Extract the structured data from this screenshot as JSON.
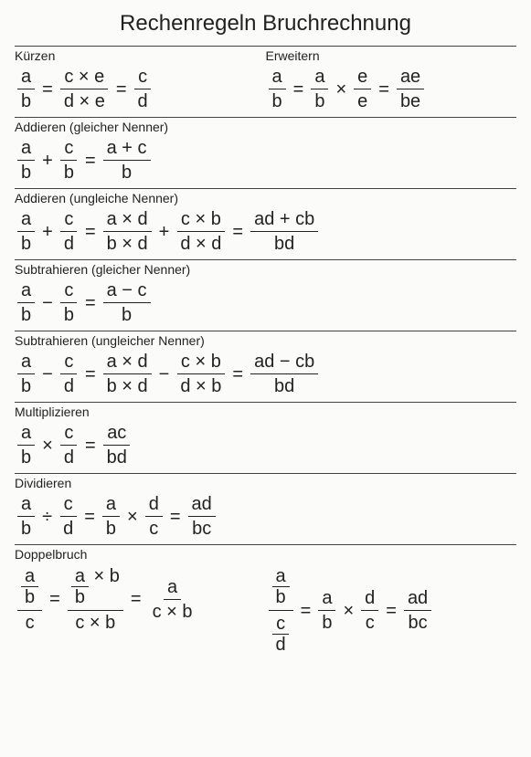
{
  "title": "Rechenregeln Bruchrechnung",
  "sections": {
    "kuerzen": {
      "label": "Kürzen"
    },
    "erweitern": {
      "label": "Erweitern"
    },
    "add_same": {
      "label": "Addieren (gleicher Nenner)"
    },
    "add_diff": {
      "label": "Addieren (ungleiche Nenner)"
    },
    "sub_same": {
      "label": "Subtrahieren (gleicher Nenner)"
    },
    "sub_diff": {
      "label": "Subtrahieren (ungleicher Nenner)"
    },
    "mult": {
      "label": "Multiplizieren"
    },
    "div": {
      "label": "Dividieren"
    },
    "doppel": {
      "label": "Doppelbruch"
    }
  },
  "sym": {
    "a": "a",
    "b": "b",
    "c": "c",
    "d": "d",
    "e": "e",
    "eq": "=",
    "plus": "+",
    "minus": "−",
    "times": "×",
    "divide": "÷"
  },
  "expr": {
    "c_times_e": "c × e",
    "d_times_e": "d × e",
    "ae": "ae",
    "be": "be",
    "a_plus_c": "a + c",
    "a_times_d": "a × d",
    "b_times_d": "b × d",
    "c_times_b": "c × b",
    "d_times_d": "d × d",
    "d_times_b": "d × b",
    "ad_plus_cb": "ad + cb",
    "bd": "bd",
    "a_minus_c": "a − c",
    "ad_minus_cb": "ad − cb",
    "ac": "ac",
    "ad": "ad",
    "bc": "bc"
  },
  "style": {
    "title_fontsize": 24,
    "label_fontsize": 14,
    "math_fontsize": 20,
    "rule_color": "#444444",
    "text_color": "#222222",
    "background_color": "#fbfbf9",
    "font_family": "Trebuchet MS"
  }
}
